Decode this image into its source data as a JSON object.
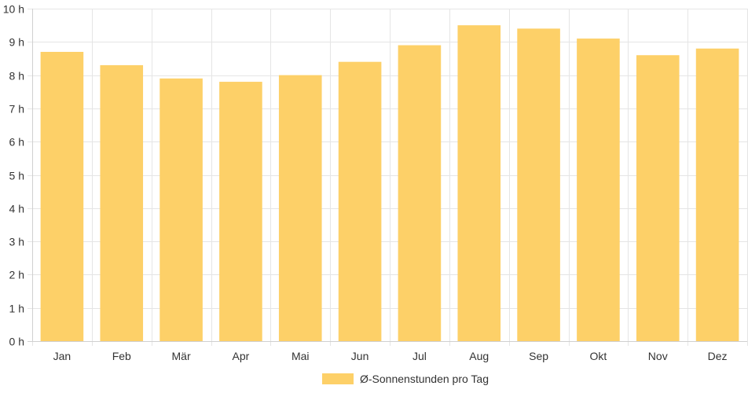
{
  "chart_data": {
    "type": "bar",
    "categories": [
      "Jan",
      "Feb",
      "Mär",
      "Apr",
      "Mai",
      "Jun",
      "Jul",
      "Aug",
      "Sep",
      "Okt",
      "Nov",
      "Dez"
    ],
    "series": [
      {
        "name": "Ø-Sonnenstunden pro Tag",
        "values": [
          8.7,
          8.3,
          7.9,
          7.8,
          8.0,
          8.4,
          8.9,
          9.5,
          9.4,
          9.1,
          8.6,
          8.8
        ]
      }
    ],
    "ylim": [
      0,
      10
    ],
    "yticks": [
      0,
      1,
      2,
      3,
      4,
      5,
      6,
      7,
      8,
      9,
      10
    ],
    "y_tick_labels": [
      "0 h",
      "1 h",
      "2 h",
      "3 h",
      "4 h",
      "5 h",
      "6 h",
      "7 h",
      "8 h",
      "9 h",
      "10 h"
    ],
    "grid": true,
    "legend_position": "bottom",
    "colors": {
      "bar": "#fdd068",
      "grid": "#e5e5e5",
      "axis": "#d0d0d0",
      "text": "#333333"
    }
  }
}
